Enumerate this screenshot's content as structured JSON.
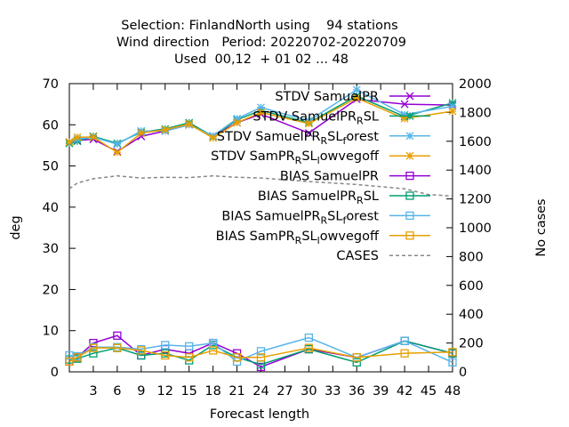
{
  "chart_data": {
    "type": "line",
    "title_lines": [
      "Selection: FinlandNorth using    94 stations",
      "Wind direction   Period: 20220702-20220709",
      "Used  00,12  + 01 02 ... 48"
    ],
    "xlabel": "Forecast length",
    "ylabel": "deg",
    "y2label": "No cases",
    "xlim": [
      0,
      48
    ],
    "ylim": [
      0,
      70
    ],
    "y2lim": [
      0,
      2000
    ],
    "x_ticks": [
      3,
      6,
      9,
      12,
      15,
      18,
      21,
      24,
      27,
      30,
      33,
      36,
      39,
      42,
      45,
      48
    ],
    "y_ticks": [
      0,
      10,
      20,
      30,
      40,
      50,
      60,
      70
    ],
    "y2_ticks": [
      0,
      200,
      400,
      600,
      800,
      1000,
      1200,
      1400,
      1600,
      1800,
      2000
    ],
    "grid": false,
    "legend_position": "top-right",
    "x": [
      0,
      1,
      3,
      6,
      9,
      12,
      15,
      18,
      21,
      24,
      30,
      36,
      42,
      48
    ],
    "series": [
      {
        "name": "STDV SamuelPR",
        "color": "#9400d3",
        "marker": "x",
        "axis": "y",
        "values": [
          55.8,
          56.2,
          56.5,
          53.5,
          57.2,
          58.5,
          60,
          57.3,
          60.5,
          62.6,
          58,
          66.2,
          65,
          64.8
        ]
      },
      {
        "name": "STDV SamuelPR_RSL",
        "color": "#009e73",
        "marker": "star",
        "axis": "y",
        "values": [
          55.5,
          56,
          57.2,
          55.5,
          58.2,
          59,
          60.5,
          57.2,
          61.2,
          63.5,
          60.5,
          67,
          62,
          65.3
        ]
      },
      {
        "name": "STDV SamuelPR_RSL_forest",
        "color": "#56b4e9",
        "marker": "star",
        "axis": "y",
        "values": [
          55.8,
          56.5,
          57,
          55.3,
          58.5,
          58.5,
          60,
          57.3,
          61.5,
          64.2,
          61,
          68.5,
          62.5,
          64.5
        ]
      },
      {
        "name": "STDV SamPR_RSL_lowvegoff",
        "color": "#e69f00",
        "marker": "star",
        "axis": "y",
        "values": [
          55.8,
          57,
          57,
          53.3,
          58,
          58.8,
          60.2,
          56.8,
          60.5,
          63,
          60.3,
          66.5,
          61.5,
          63.3
        ]
      },
      {
        "name": "BIAS SamuelPR",
        "color": "#9400d3",
        "marker": "square",
        "axis": "y",
        "values": [
          2.5,
          3.5,
          7,
          8.8,
          4,
          5.5,
          4.5,
          7,
          4.5,
          1.2,
          5.5,
          3.5,
          7.5,
          4.5
        ]
      },
      {
        "name": "BIAS SamuelPR_RSL",
        "color": "#009e73",
        "marker": "square",
        "axis": "y",
        "values": [
          3,
          3.2,
          4.5,
          5.8,
          4,
          4.5,
          2.8,
          6.5,
          3.5,
          1.8,
          5.5,
          2.3,
          7.5,
          4.5
        ]
      },
      {
        "name": "BIAS SamuelPR_RSL_forest",
        "color": "#56b4e9",
        "marker": "square",
        "axis": "y",
        "values": [
          4,
          3.8,
          6,
          6,
          5.5,
          6.5,
          6.2,
          7,
          2.5,
          5,
          8.3,
          3.5,
          7.5,
          2.3
        ]
      },
      {
        "name": "BIAS SamPR_RSL_lowvegoff",
        "color": "#e69f00",
        "marker": "square",
        "axis": "y",
        "values": [
          2.5,
          3.5,
          5.8,
          5.8,
          5.2,
          4,
          3.5,
          5.2,
          3.5,
          3.5,
          5.8,
          3.5,
          4.5,
          4.8
        ]
      },
      {
        "name": "CASES",
        "color": "#888888",
        "marker": "none",
        "axis": "y2",
        "dashed": true,
        "x": [
          0,
          1,
          3,
          6,
          9,
          12,
          15,
          18,
          21,
          24,
          30,
          36,
          42,
          45,
          48
        ],
        "values": [
          1270,
          1310,
          1340,
          1360,
          1345,
          1350,
          1348,
          1360,
          1350,
          1345,
          1320,
          1300,
          1270,
          1230,
          1220
        ]
      }
    ],
    "legend_entries": [
      {
        "prefix": "STDV SamuelPR",
        "sub1": "",
        "mid": "",
        "sub2": "",
        "tail": ""
      },
      {
        "prefix": "STDV SamuelPR",
        "sub1": "R",
        "mid": "SL",
        "sub2": "",
        "tail": ""
      },
      {
        "prefix": "STDV SamuelPR",
        "sub1": "R",
        "mid": "SL",
        "sub2": "f",
        "tail": "orest"
      },
      {
        "prefix": "STDV SamPR",
        "sub1": "R",
        "mid": "SL",
        "sub2": "l",
        "tail": "owvegoff"
      },
      {
        "prefix": "BIAS SamuelPR",
        "sub1": "",
        "mid": "",
        "sub2": "",
        "tail": ""
      },
      {
        "prefix": "BIAS SamuelPR",
        "sub1": "R",
        "mid": "SL",
        "sub2": "",
        "tail": ""
      },
      {
        "prefix": "BIAS SamuelPR",
        "sub1": "R",
        "mid": "SL",
        "sub2": "f",
        "tail": "orest"
      },
      {
        "prefix": "BIAS SamPR",
        "sub1": "R",
        "mid": "SL",
        "sub2": "l",
        "tail": "owvegoff"
      },
      {
        "prefix": "CASES",
        "sub1": "",
        "mid": "",
        "sub2": "",
        "tail": ""
      }
    ]
  }
}
